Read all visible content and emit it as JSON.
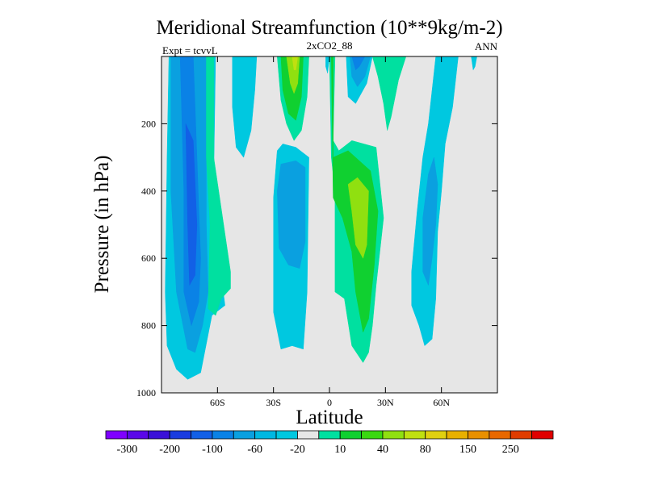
{
  "chart_data": {
    "type": "contour",
    "title": "Meridional Streamfunction (10**9kg/m-2)",
    "subtitle": "2xCO2_88",
    "left_label": "Expt = tcvvL",
    "right_label": "ANN",
    "xlabel": "Latitude",
    "ylabel": "Pressure (in hPa)",
    "xlim": [
      -90,
      90
    ],
    "ylim": [
      1000,
      0
    ],
    "x_ticks": [
      {
        "value": -60,
        "label": "60S"
      },
      {
        "value": -30,
        "label": "30S"
      },
      {
        "value": 0,
        "label": "0"
      },
      {
        "value": 30,
        "label": "30N"
      },
      {
        "value": 60,
        "label": "60N"
      }
    ],
    "y_ticks": [
      {
        "value": 200,
        "label": "200"
      },
      {
        "value": 400,
        "label": "400"
      },
      {
        "value": 600,
        "label": "600"
      },
      {
        "value": 800,
        "label": "800"
      },
      {
        "value": 1000,
        "label": "1000"
      }
    ],
    "background_color": "#e6e6e6",
    "colorbar": {
      "colors": [
        "#7f00ff",
        "#5a08e8",
        "#3a10d8",
        "#1a3ce0",
        "#1260e6",
        "#0a82e6",
        "#0aa0e0",
        "#00b8e2",
        "#00c8e0",
        "#e6e6e6",
        "#00e0a0",
        "#10d030",
        "#3ad810",
        "#90e010",
        "#c0e010",
        "#e0d010",
        "#e8b000",
        "#e89000",
        "#e86800",
        "#e03c00",
        "#e00000"
      ],
      "labels": [
        {
          "after_box": 1,
          "text": "-300"
        },
        {
          "after_box": 3,
          "text": "-200"
        },
        {
          "after_box": 5,
          "text": "-100"
        },
        {
          "after_box": 7,
          "text": "-60"
        },
        {
          "after_box": 9,
          "text": "-20"
        },
        {
          "after_box": 11,
          "text": "10"
        },
        {
          "after_box": 13,
          "text": "40"
        },
        {
          "after_box": 15,
          "text": "80"
        },
        {
          "after_box": 17,
          "text": "150"
        },
        {
          "after_box": 19,
          "text": "250"
        }
      ]
    },
    "regions": [
      {
        "name": "sh-cell-outer",
        "color": "#00c8e0",
        "points": [
          [
            -86,
            0
          ],
          [
            -61,
            0
          ],
          [
            -62,
            350
          ],
          [
            -58,
            650
          ],
          [
            -56,
            740
          ],
          [
            -63,
            770
          ],
          [
            -69,
            940
          ],
          [
            -76,
            960
          ],
          [
            -82,
            930
          ],
          [
            -87,
            860
          ],
          [
            -88,
            700
          ],
          [
            -87,
            300
          ]
        ]
      },
      {
        "name": "sh-cell-mid",
        "color": "#0aa0e0",
        "points": [
          [
            -85,
            0
          ],
          [
            -66,
            0
          ],
          [
            -66,
            500
          ],
          [
            -65,
            700
          ],
          [
            -68,
            800
          ],
          [
            -72,
            880
          ],
          [
            -76,
            870
          ],
          [
            -82,
            700
          ],
          [
            -85,
            400
          ]
        ]
      },
      {
        "name": "sh-cell-inner",
        "color": "#0a82e6",
        "points": [
          [
            -80,
            0
          ],
          [
            -73,
            0
          ],
          [
            -71,
            300
          ],
          [
            -69,
            600
          ],
          [
            -70,
            730
          ],
          [
            -74,
            800
          ],
          [
            -78,
            700
          ],
          [
            -78,
            400
          ]
        ]
      },
      {
        "name": "sh-cell-core",
        "color": "#1260e6",
        "points": [
          [
            -77,
            200
          ],
          [
            -73,
            250
          ],
          [
            -71,
            500
          ],
          [
            -72,
            650
          ],
          [
            -75,
            680
          ],
          [
            -76,
            500
          ]
        ]
      },
      {
        "name": "sh-60s-positive",
        "color": "#00e0a0",
        "points": [
          [
            -66,
            0
          ],
          [
            -62,
            0
          ],
          [
            -62,
            300
          ],
          [
            -53,
            640
          ],
          [
            -53,
            690
          ],
          [
            -58,
            720
          ],
          [
            -61,
            770
          ],
          [
            -65,
            750
          ],
          [
            -64,
            500
          ],
          [
            -66,
            300
          ]
        ]
      },
      {
        "name": "sh-50s-negative",
        "color": "#00c8e0",
        "points": [
          [
            -52,
            0
          ],
          [
            -39,
            0
          ],
          [
            -40,
            100
          ],
          [
            -42,
            220
          ],
          [
            -46,
            300
          ],
          [
            -50,
            270
          ],
          [
            -52,
            150
          ]
        ]
      },
      {
        "name": "sh-30s-positive",
        "color": "#00e0a0",
        "points": [
          [
            -28,
            0
          ],
          [
            -11,
            0
          ],
          [
            -12,
            120
          ],
          [
            -15,
            220
          ],
          [
            -19,
            250
          ],
          [
            -23,
            200
          ],
          [
            -26,
            130
          ]
        ]
      },
      {
        "name": "sh-30s-positive-2",
        "color": "#10d030",
        "points": [
          [
            -26,
            0
          ],
          [
            -14,
            0
          ],
          [
            -15,
            120
          ],
          [
            -18,
            190
          ],
          [
            -22,
            170
          ],
          [
            -25,
            100
          ]
        ]
      },
      {
        "name": "sh-30s-positive-3",
        "color": "#90e010",
        "points": [
          [
            -23,
            0
          ],
          [
            -16,
            0
          ],
          [
            -17,
            80
          ],
          [
            -19,
            110
          ],
          [
            -21,
            80
          ]
        ]
      },
      {
        "name": "sh-30s-positive-4",
        "color": "#c0e010",
        "points": [
          [
            -20,
            0
          ],
          [
            -17,
            0
          ],
          [
            -18,
            40
          ],
          [
            -19,
            40
          ]
        ]
      },
      {
        "name": "sh-deep-negative",
        "color": "#00c8e0",
        "points": [
          [
            -28,
            280
          ],
          [
            -25,
            260
          ],
          [
            -18,
            270
          ],
          [
            -11,
            300
          ],
          [
            -12,
            700
          ],
          [
            -14,
            870
          ],
          [
            -20,
            860
          ],
          [
            -26,
            870
          ],
          [
            -30,
            760
          ],
          [
            -30,
            420
          ]
        ]
      },
      {
        "name": "sh-deep-negative-2",
        "color": "#0aa0e0",
        "points": [
          [
            -26,
            320
          ],
          [
            -18,
            310
          ],
          [
            -13,
            330
          ],
          [
            -13,
            550
          ],
          [
            -16,
            630
          ],
          [
            -22,
            620
          ],
          [
            -27,
            570
          ],
          [
            -28,
            400
          ]
        ]
      },
      {
        "name": "eq-negative",
        "color": "#00c8e0",
        "points": [
          [
            -2,
            0
          ],
          [
            0,
            0
          ],
          [
            -1,
            50
          ],
          [
            -2,
            30
          ]
        ]
      },
      {
        "name": "eq-positive",
        "color": "#00e0a0",
        "points": [
          [
            0,
            0
          ],
          [
            3,
            0
          ],
          [
            2,
            250
          ],
          [
            5,
            280
          ],
          [
            12,
            250
          ],
          [
            25,
            270
          ],
          [
            29,
            480
          ],
          [
            25,
            680
          ],
          [
            23,
            800
          ],
          [
            21,
            880
          ],
          [
            18,
            910
          ],
          [
            12,
            860
          ],
          [
            8,
            720
          ],
          [
            3,
            700
          ],
          [
            3,
            400
          ],
          [
            1,
            300
          ]
        ]
      },
      {
        "name": "eq-positive-2",
        "color": "#10d030",
        "points": [
          [
            1,
            0
          ],
          [
            2,
            0
          ],
          [
            2,
            300
          ],
          [
            10,
            280
          ],
          [
            22,
            340
          ],
          [
            26,
            460
          ],
          [
            24,
            620
          ],
          [
            21,
            780
          ],
          [
            18,
            820
          ],
          [
            14,
            700
          ],
          [
            12,
            580
          ],
          [
            7,
            480
          ],
          [
            2,
            420
          ]
        ]
      },
      {
        "name": "eq-positive-3",
        "color": "#90e010",
        "points": [
          [
            10,
            380
          ],
          [
            15,
            360
          ],
          [
            21,
            400
          ],
          [
            20,
            560
          ],
          [
            18,
            600
          ],
          [
            14,
            560
          ],
          [
            12,
            460
          ]
        ]
      },
      {
        "name": "nh-negative",
        "color": "#00c8e0",
        "points": [
          [
            9,
            0
          ],
          [
            23,
            0
          ],
          [
            20,
            80
          ],
          [
            14,
            140
          ],
          [
            10,
            120
          ]
        ]
      },
      {
        "name": "nh-negative-2",
        "color": "#0aa0e0",
        "points": [
          [
            11,
            0
          ],
          [
            22,
            0
          ],
          [
            19,
            60
          ],
          [
            15,
            90
          ],
          [
            12,
            60
          ]
        ]
      },
      {
        "name": "nh-negative-3",
        "color": "#0a82e6",
        "points": [
          [
            12,
            0
          ],
          [
            19,
            0
          ],
          [
            16,
            30
          ],
          [
            14,
            40
          ]
        ]
      },
      {
        "name": "nh-positive",
        "color": "#00e0a0",
        "points": [
          [
            23,
            0
          ],
          [
            41,
            0
          ],
          [
            37,
            70
          ],
          [
            33,
            180
          ],
          [
            31,
            220
          ],
          [
            29,
            140
          ],
          [
            26,
            60
          ]
        ]
      },
      {
        "name": "nh-deep-negative",
        "color": "#00c8e0",
        "points": [
          [
            57,
            0
          ],
          [
            69,
            0
          ],
          [
            66,
            150
          ],
          [
            62,
            260
          ],
          [
            60,
            400
          ],
          [
            58,
            520
          ],
          [
            57,
            720
          ],
          [
            55,
            840
          ],
          [
            51,
            860
          ],
          [
            48,
            800
          ],
          [
            44,
            740
          ],
          [
            44,
            640
          ],
          [
            47,
            460
          ],
          [
            50,
            300
          ],
          [
            53,
            200
          ]
        ]
      },
      {
        "name": "nh-deep-negative-2",
        "color": "#0aa0e0",
        "points": [
          [
            53,
            350
          ],
          [
            56,
            300
          ],
          [
            58,
            380
          ],
          [
            57,
            500
          ],
          [
            55,
            600
          ],
          [
            53,
            680
          ],
          [
            50,
            640
          ],
          [
            50,
            480
          ]
        ]
      },
      {
        "name": "nh-polar-negative",
        "color": "#00c8e0",
        "points": [
          [
            76,
            0
          ],
          [
            79,
            0
          ],
          [
            78,
            30
          ],
          [
            77,
            40
          ]
        ]
      }
    ]
  }
}
